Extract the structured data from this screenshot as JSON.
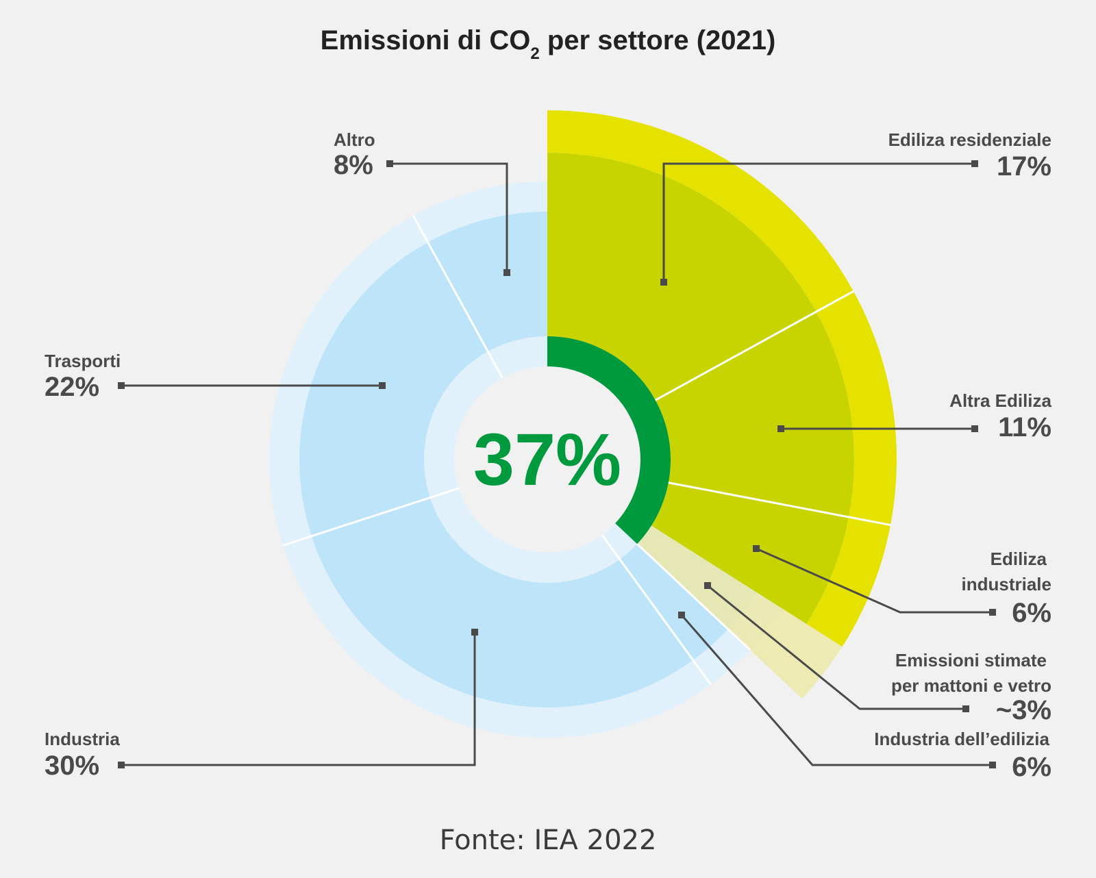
{
  "title": {
    "main": "Emissioni di CO",
    "sub": "2",
    "rest": " per settore (2021)"
  },
  "center_value": "37%",
  "source": "Fonte: IEA 2022",
  "colors": {
    "background": "#f1f1f1",
    "blue_main": "#bde4f9",
    "blue_light": "#e0f1fc",
    "yellow_main": "#c8d400",
    "yellow_bright": "#e6e200",
    "pale_yellow": "#ece9a8",
    "green": "#009a3e",
    "leader": "#4a4a4a"
  },
  "chart_data": {
    "type": "pie",
    "title": "Emissioni di CO2 per settore (2021)",
    "highlight_total": 37,
    "slices": [
      {
        "label_lines": [
          "Ediliza residenziale"
        ],
        "value_label": "17%",
        "value": 17,
        "group": "building"
      },
      {
        "label_lines": [
          "Altra Ediliza"
        ],
        "value_label": "11%",
        "value": 11,
        "group": "building"
      },
      {
        "label_lines": [
          "Ediliza",
          "industriale"
        ],
        "value_label": "6%",
        "value": 6,
        "group": "building"
      },
      {
        "label_lines": [
          "Emissioni stimate",
          "per mattoni e vetro"
        ],
        "value_label": "~3%",
        "value": 3,
        "group": "building-estimate"
      },
      {
        "label_lines": [
          "Industria dell’edilizia"
        ],
        "value_label": "6%",
        "value": 6,
        "group": "other"
      },
      {
        "label_lines": [
          "Industria"
        ],
        "value_label": "30%",
        "value": 30,
        "group": "other"
      },
      {
        "label_lines": [
          "Trasporti"
        ],
        "value_label": "22%",
        "value": 22,
        "group": "other"
      },
      {
        "label_lines": [
          "Altro"
        ],
        "value_label": "8%",
        "value": 8,
        "group": "other"
      }
    ]
  }
}
